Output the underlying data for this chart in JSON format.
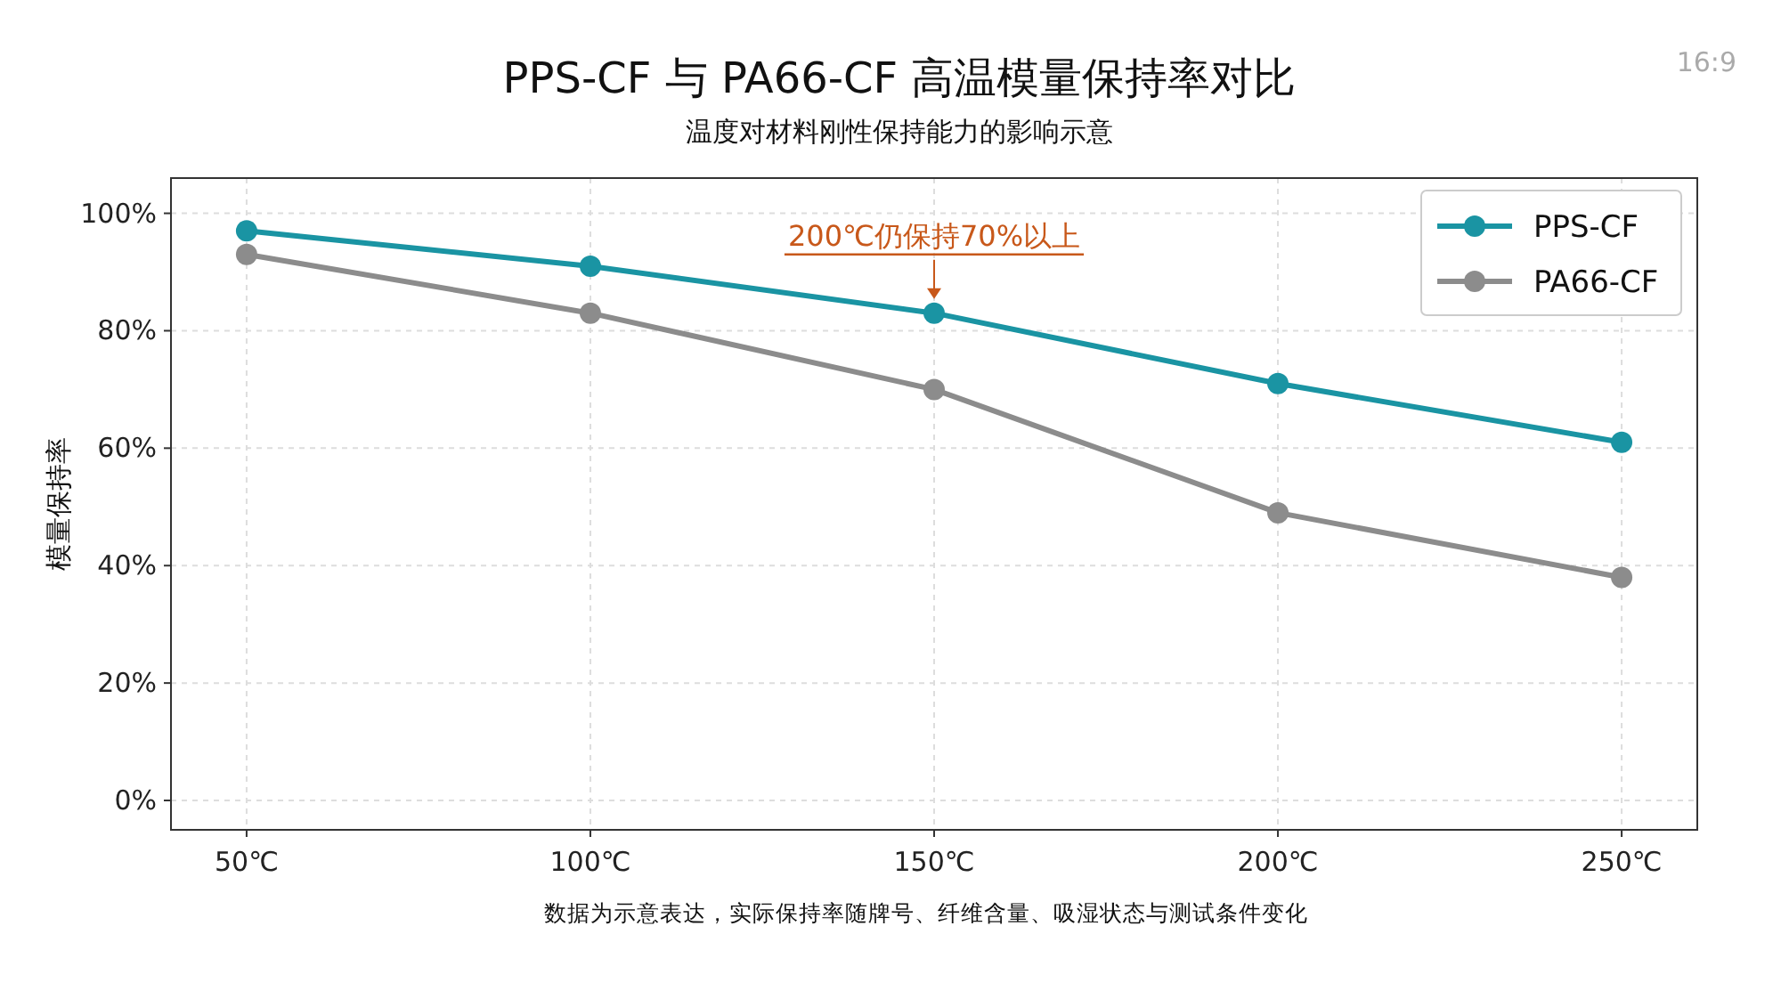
{
  "chart_data": {
    "type": "line",
    "title": "PPS-CF 与 PA66-CF 高温模量保持率对比",
    "subtitle": "温度对材料刚性保持能力的影响示意",
    "ylabel": "模量保持率",
    "categories": [
      "50℃",
      "100℃",
      "150℃",
      "200℃",
      "250℃"
    ],
    "series": [
      {
        "name": "PPS-CF",
        "color": "#1a94a3",
        "values": [
          97,
          91,
          83,
          71,
          61
        ]
      },
      {
        "name": "PA66-CF",
        "color": "#8c8c8c",
        "values": [
          93,
          83,
          70,
          49,
          38
        ]
      }
    ],
    "ylim": [
      -5,
      106
    ],
    "yticks": [
      {
        "value": 0,
        "label": "0%"
      },
      {
        "value": 20,
        "label": "20%"
      },
      {
        "value": 40,
        "label": "40%"
      },
      {
        "value": 60,
        "label": "60%"
      },
      {
        "value": 80,
        "label": "80%"
      },
      {
        "value": 100,
        "label": "100%"
      }
    ],
    "grid": true,
    "legend": "top right",
    "marker": "circle",
    "line_style": "solid",
    "annotations": [
      {
        "text": "200℃仍保持70%以上",
        "x": "150℃",
        "y": 83
      },
      "数据为示意表达，实际保持率随牌号、纤维含量、吸湿状态与测试条件变化",
      "16:9"
    ]
  }
}
